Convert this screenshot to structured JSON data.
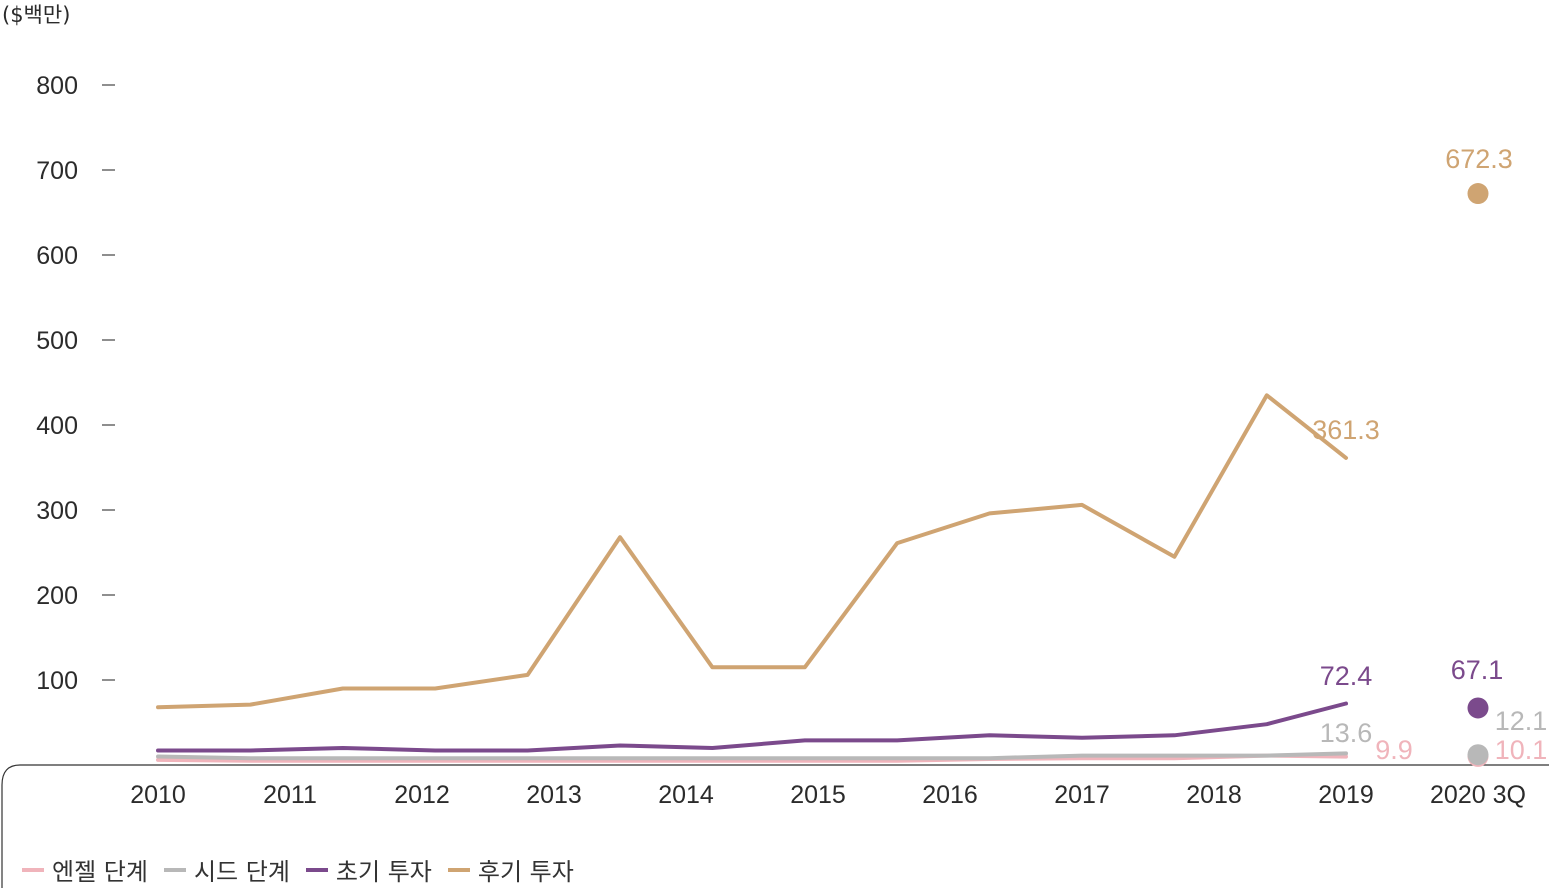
{
  "chart_data": {
    "type": "line",
    "unit_label": "($백만)",
    "categories": [
      "2010",
      "2011",
      "2012",
      "2013",
      "2014",
      "2015",
      "2016",
      "2017",
      "2018",
      "2019",
      "2020 3Q"
    ],
    "ylim": [
      0,
      800
    ],
    "yticks": [
      100,
      200,
      300,
      400,
      500,
      600,
      700,
      800
    ],
    "grid": false,
    "legend_position": "bottom-left",
    "series": [
      {
        "name": "엔젤 단계",
        "color": "#f0b4bb",
        "x": [
          0,
          0.7,
          1.4,
          2.1,
          2.8,
          3.5,
          4.2,
          4.9,
          5.6,
          6.3,
          7.0,
          7.7,
          8.4,
          9.0
        ],
        "values": [
          6,
          5,
          5,
          5,
          5,
          5,
          5,
          5,
          5,
          7,
          8,
          8,
          11,
          9.9
        ],
        "end_label": "9.9",
        "point_2020": 10.1,
        "point_label": "10.1"
      },
      {
        "name": "시드 단계",
        "color": "#b8b8b8",
        "x": [
          0,
          0.7,
          1.4,
          2.1,
          2.8,
          3.5,
          4.2,
          4.9,
          5.6,
          6.3,
          7.0,
          7.7,
          8.4,
          9.0
        ],
        "values": [
          10,
          8,
          8,
          8,
          8,
          8,
          8,
          8,
          8,
          8,
          11,
          11,
          11,
          13.6
        ],
        "end_label": "13.6",
        "point_2020": 12.1,
        "point_label": "12.1"
      },
      {
        "name": "초기 투자",
        "color": "#7b4a8c",
        "x": [
          0,
          0.7,
          1.4,
          2.1,
          2.8,
          3.5,
          4.2,
          4.9,
          5.6,
          6.3,
          7.0,
          7.7,
          8.4,
          9.0
        ],
        "values": [
          17,
          17,
          20,
          17,
          17,
          23,
          20,
          29,
          29,
          35,
          32,
          35,
          48,
          72.4
        ],
        "end_label": "72.4",
        "point_2020": 67.1,
        "point_label": "67.1"
      },
      {
        "name": "후기 투자",
        "color": "#cfa472",
        "x": [
          0,
          0.7,
          1.4,
          2.1,
          2.8,
          3.5,
          4.2,
          4.9,
          5.6,
          6.3,
          7.0,
          7.7,
          8.4,
          9.0
        ],
        "values": [
          68,
          71,
          90,
          90,
          106,
          268,
          115,
          115,
          261,
          296,
          306,
          245,
          435,
          361.3
        ],
        "end_label": "361.3",
        "point_2020": 672.3,
        "point_label": "672.3"
      }
    ]
  }
}
